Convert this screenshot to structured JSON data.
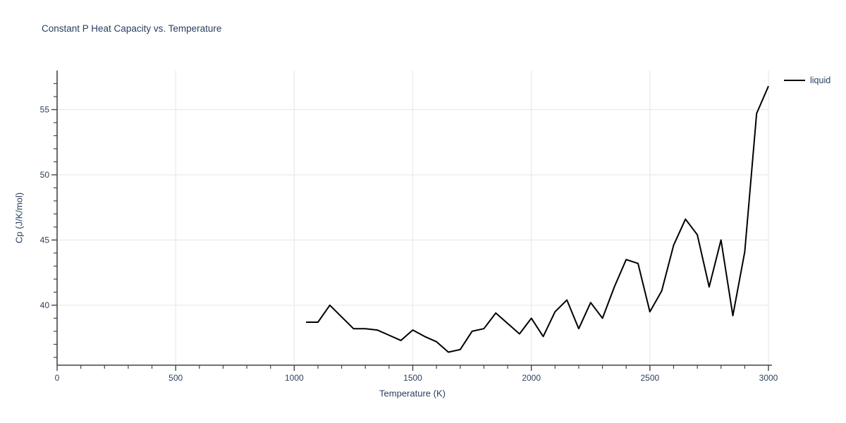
{
  "chart_data": {
    "type": "line",
    "title": "Constant P Heat Capacity vs. Temperature",
    "xlabel": "Temperature (K)",
    "ylabel": "Cp (J/K/mol)",
    "xlim": [
      0,
      3000
    ],
    "ylim": [
      35.4,
      58.0
    ],
    "x_ticks": [
      0,
      500,
      1000,
      1500,
      2000,
      2500,
      3000
    ],
    "y_ticks": [
      40,
      45,
      50,
      55
    ],
    "x_minor_tick_step": 100,
    "y_minor_tick_step": 1,
    "grid": true,
    "legend_position": "top-right-outside",
    "series": [
      {
        "name": "liquid",
        "color": "#000000",
        "x": [
          1050,
          1100,
          1150,
          1200,
          1250,
          1300,
          1350,
          1400,
          1450,
          1500,
          1550,
          1600,
          1650,
          1700,
          1750,
          1800,
          1850,
          1900,
          1950,
          2000,
          2050,
          2100,
          2150,
          2200,
          2250,
          2300,
          2350,
          2400,
          2450,
          2500,
          2550,
          2600,
          2650,
          2700,
          2750,
          2800,
          2850,
          2900,
          2950,
          3000
        ],
        "y": [
          38.7,
          38.7,
          40.0,
          39.1,
          38.2,
          38.2,
          38.1,
          37.7,
          37.3,
          38.1,
          37.6,
          37.2,
          36.4,
          36.6,
          38.0,
          38.2,
          39.4,
          38.6,
          37.8,
          39.0,
          37.6,
          39.5,
          40.4,
          38.2,
          40.2,
          39.0,
          41.4,
          43.5,
          43.2,
          39.5,
          41.1,
          44.6,
          46.6,
          45.4,
          41.4,
          45.0,
          39.2,
          44.1,
          54.7,
          56.8
        ]
      }
    ]
  },
  "legend": {
    "items": [
      {
        "label": "liquid",
        "color": "#000000"
      }
    ]
  },
  "colors": {
    "text": "#2a3f5f",
    "grid": "#e9e9e9",
    "axis": "#444444",
    "line": "#000000"
  }
}
